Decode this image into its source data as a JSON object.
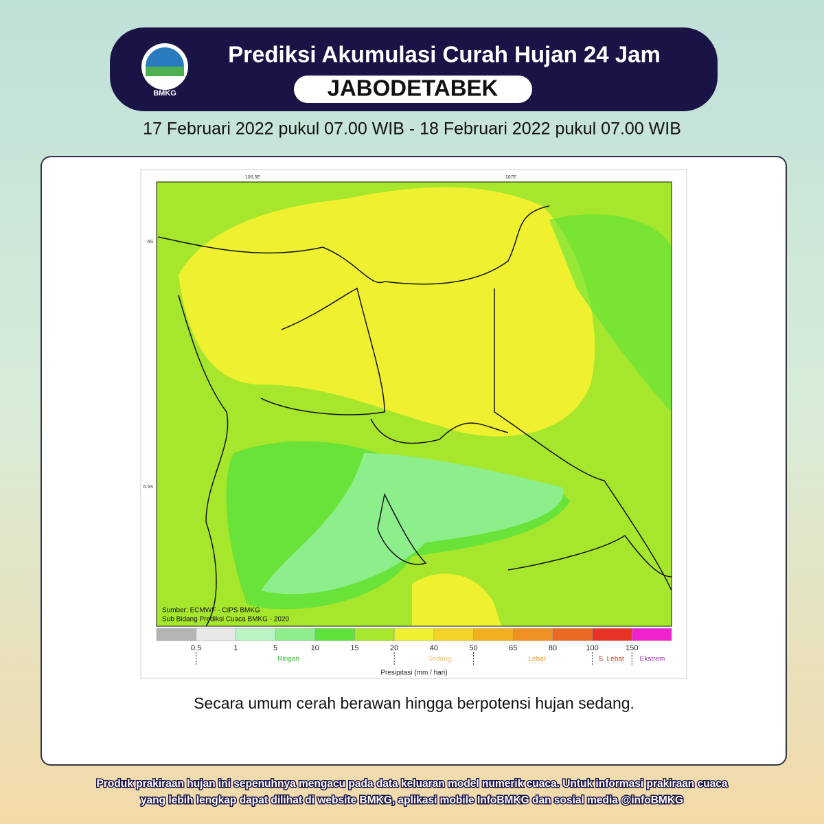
{
  "header": {
    "logo": "BMKG",
    "title": "Prediksi Akumulasi Curah Hujan 24 Jam",
    "region": "JABODETABEK",
    "date": "17 Februari 2022 pukul 07.00 WIB - 18 Februari 2022 pukul 07.00 WIB"
  },
  "map": {
    "lon_labels": [
      "106.5E",
      "107E"
    ],
    "lat_labels": [
      "6S",
      "6.5S"
    ],
    "source": [
      "Sumber: ECMWF - CIPS BMKG",
      "Sub Bidang Prediksi Cuaca BMKG - 2020"
    ]
  },
  "legend": {
    "colors": [
      "#b4b4b4",
      "#e8e8e8",
      "#baf3c4",
      "#8cef8c",
      "#5ee23c",
      "#a6e62c",
      "#eef030",
      "#f3d426",
      "#f1b022",
      "#ef9022",
      "#ea6a22",
      "#e83424",
      "#f022cc"
    ],
    "levels": [
      "0.5",
      "1",
      "5",
      "10",
      "15",
      "20",
      "40",
      "50",
      "65",
      "80",
      "100",
      "150"
    ],
    "categories": [
      {
        "name": "Ringan",
        "color": "#3cb83c"
      },
      {
        "name": "Sedang",
        "color": "#e8c070"
      },
      {
        "name": "Lebat",
        "color": "#e89a30"
      },
      {
        "name": "S. Lebat",
        "color": "#c0401c"
      },
      {
        "name": "Ekstrem",
        "color": "#9a30b0"
      }
    ],
    "axis_label": "Presipitasi (mm / hari)"
  },
  "caption": "Secara umum cerah berawan hingga berpotensi hujan sedang.",
  "footer": [
    "Produk prakiraan hujan ini sepenuhnya mengacu pada data keluaran model numerik cuaca. Untuk informasi prakiraan cuaca",
    "yang lebih lengkap dapat dilihat di website BMKG, aplikasi mobile InfoBMKG dan sosial media @infoBMKG"
  ]
}
